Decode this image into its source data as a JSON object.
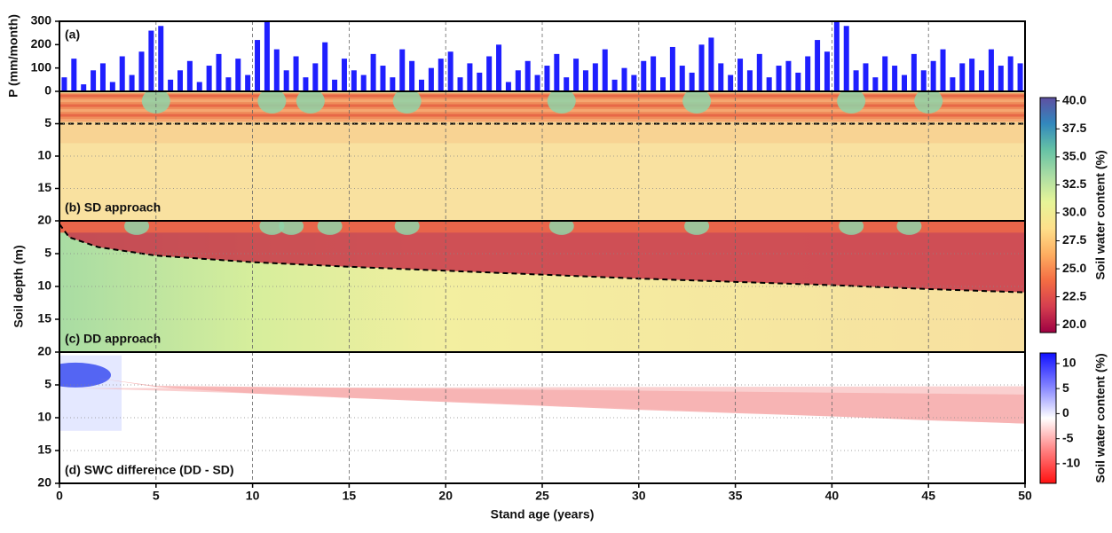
{
  "chart_data": [
    {
      "type": "bar",
      "title": "(a)",
      "ylabel": "P (mm/month)",
      "color": "#1f1fff",
      "xlim": [
        0,
        50
      ],
      "ylim": [
        0,
        300
      ],
      "yticks": [
        0,
        100,
        200,
        300
      ],
      "grid": true,
      "x": [
        0.25,
        0.75,
        1.25,
        1.75,
        2.25,
        2.75,
        3.25,
        3.75,
        4.25,
        4.75,
        5.25,
        5.75,
        6.25,
        6.75,
        7.25,
        7.75,
        8.25,
        8.75,
        9.25,
        9.75,
        10.25,
        10.75,
        11.25,
        11.75,
        12.25,
        12.75,
        13.25,
        13.75,
        14.25,
        14.75,
        15.25,
        15.75,
        16.25,
        16.75,
        17.25,
        17.75,
        18.25,
        18.75,
        19.25,
        19.75,
        20.25,
        20.75,
        21.25,
        21.75,
        22.25,
        22.75,
        23.25,
        23.75,
        24.25,
        24.75,
        25.25,
        25.75,
        26.25,
        26.75,
        27.25,
        27.75,
        28.25,
        28.75,
        29.25,
        29.75,
        30.25,
        30.75,
        31.25,
        31.75,
        32.25,
        32.75,
        33.25,
        33.75,
        34.25,
        34.75,
        35.25,
        35.75,
        36.25,
        36.75,
        37.25,
        37.75,
        38.25,
        38.75,
        39.25,
        39.75,
        40.25,
        40.75,
        41.25,
        41.75,
        42.25,
        42.75,
        43.25,
        43.75,
        44.25,
        44.75,
        45.25,
        45.75,
        46.25,
        46.75,
        47.25,
        47.75,
        48.25,
        48.75,
        49.25,
        49.75
      ],
      "values": [
        60,
        140,
        30,
        90,
        120,
        40,
        150,
        70,
        170,
        260,
        280,
        50,
        90,
        130,
        40,
        110,
        160,
        60,
        140,
        70,
        220,
        300,
        180,
        90,
        150,
        60,
        120,
        210,
        50,
        140,
        90,
        70,
        160,
        110,
        60,
        180,
        130,
        50,
        100,
        140,
        170,
        60,
        120,
        80,
        150,
        200,
        40,
        90,
        130,
        70,
        110,
        160,
        60,
        140,
        90,
        120,
        180,
        50,
        100,
        70,
        130,
        150,
        60,
        190,
        110,
        80,
        200,
        230,
        120,
        70,
        140,
        90,
        160,
        60,
        110,
        130,
        80,
        150,
        220,
        170,
        300,
        280,
        90,
        120,
        60,
        150,
        110,
        70,
        160,
        90,
        130,
        180,
        60,
        120,
        140,
        90,
        180,
        110,
        150,
        120
      ]
    },
    {
      "type": "heatmap",
      "title": "(b) SD approach",
      "xlim": [
        0,
        50
      ],
      "ylim": [
        0,
        20
      ],
      "yticks": [
        5,
        10,
        15,
        20
      ],
      "inverted": true,
      "grid": true,
      "boundary": {
        "x": [
          0,
          50
        ],
        "values": [
          5,
          5
        ],
        "color": "#000000"
      },
      "colorbar": {
        "label": "Soil water content (%)",
        "lim": [
          40.3,
          19.3
        ],
        "colors": [
          "#5e4fa2",
          "#3288bd",
          "#66c2a5",
          "#abdda4",
          "#e6f598",
          "#fee08b",
          "#fdae61",
          "#f46d43",
          "#d53e4f",
          "#9e0142"
        ],
        "ticks": [
          {
            "value": 40,
            "label": "40.0"
          },
          {
            "value": 37.5,
            "label": "37.5"
          },
          {
            "value": 35,
            "label": "35.0"
          },
          {
            "value": 32.5,
            "label": "32.5"
          },
          {
            "value": 30,
            "label": "30.0"
          },
          {
            "value": 27.5,
            "label": "27.5"
          },
          {
            "value": 25,
            "label": "25.0"
          },
          {
            "value": 22.5,
            "label": "22.5"
          },
          {
            "value": 20,
            "label": "20.0"
          }
        ]
      }
    },
    {
      "type": "heatmap",
      "title": "(c) DD approach",
      "ylabel": "Soil depth (m)",
      "xlim": [
        0,
        50
      ],
      "ylim": [
        0,
        20
      ],
      "yticks": [
        5,
        10,
        15,
        20
      ],
      "inverted": true,
      "grid": true,
      "boundary": {
        "x": [
          0,
          0.5,
          2,
          5,
          10,
          15,
          20,
          25,
          30,
          35,
          40,
          45,
          50
        ],
        "values": [
          0.5,
          2.5,
          4,
          5.3,
          6.3,
          7,
          7.6,
          8.2,
          8.8,
          9.3,
          9.8,
          10.4,
          10.9
        ],
        "color": "#000000"
      }
    },
    {
      "type": "heatmap",
      "title": "(d) SWC difference (DD - SD)",
      "xlabel": "Stand age (years)",
      "xlim": [
        0,
        50
      ],
      "ylim": [
        0,
        20
      ],
      "yticks": [
        5,
        10,
        15,
        20
      ],
      "inverted": true,
      "grid": true,
      "xticks": [
        0,
        5,
        10,
        15,
        20,
        25,
        30,
        35,
        40,
        45,
        50
      ],
      "colorbar": {
        "label": "Soil water content (%)",
        "lim": [
          12.1,
          -13.9
        ],
        "colors": [
          "#1010ff",
          "#8080ff",
          "#ffffff",
          "#ff8080",
          "#ff1010"
        ],
        "ticks": [
          10,
          5,
          0,
          -5,
          -10
        ]
      }
    }
  ]
}
